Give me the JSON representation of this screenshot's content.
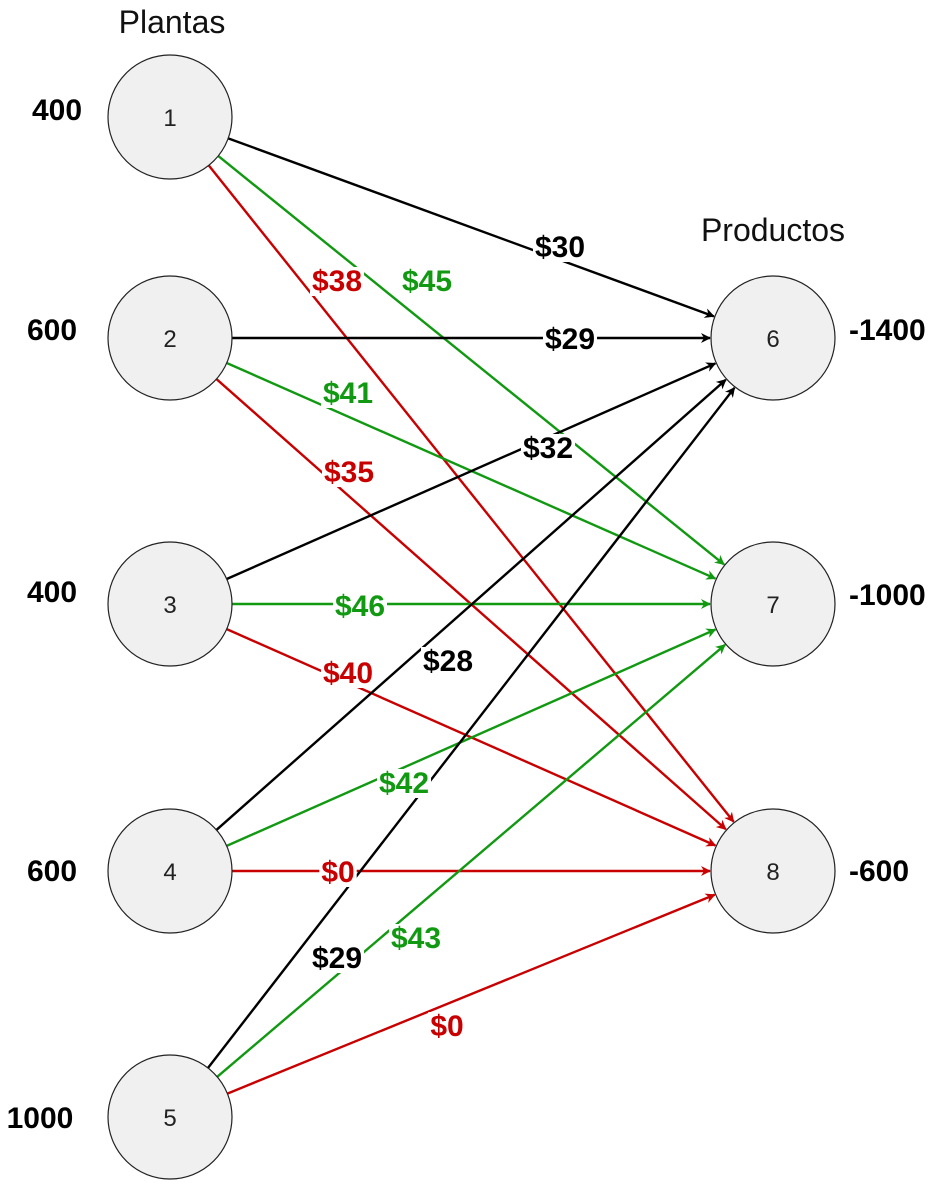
{
  "headings": {
    "sources": "Plantas",
    "sinks": "Productos"
  },
  "colors": {
    "black": "#000000",
    "green": "#119911",
    "red": "#c80000"
  },
  "nodes": [
    {
      "id": "1",
      "label": "1",
      "amount": "400"
    },
    {
      "id": "2",
      "label": "2",
      "amount": "600"
    },
    {
      "id": "3",
      "label": "3",
      "amount": "400"
    },
    {
      "id": "4",
      "label": "4",
      "amount": "600"
    },
    {
      "id": "5",
      "label": "5",
      "amount": "1000"
    },
    {
      "id": "6",
      "label": "6",
      "amount": "-1400"
    },
    {
      "id": "7",
      "label": "7",
      "amount": "-1000"
    },
    {
      "id": "8",
      "label": "8",
      "amount": "-600"
    }
  ],
  "edges": [
    {
      "from": "1",
      "to": "6",
      "cost": "$30",
      "color": "black"
    },
    {
      "from": "1",
      "to": "7",
      "cost": "$45",
      "color": "green"
    },
    {
      "from": "1",
      "to": "8",
      "cost": "$38",
      "color": "red"
    },
    {
      "from": "2",
      "to": "6",
      "cost": "$29",
      "color": "black"
    },
    {
      "from": "2",
      "to": "7",
      "cost": "$41",
      "color": "green"
    },
    {
      "from": "2",
      "to": "8",
      "cost": "$35",
      "color": "red"
    },
    {
      "from": "3",
      "to": "6",
      "cost": "$32",
      "color": "black"
    },
    {
      "from": "3",
      "to": "7",
      "cost": "$46",
      "color": "green"
    },
    {
      "from": "3",
      "to": "8",
      "cost": "$40",
      "color": "red"
    },
    {
      "from": "4",
      "to": "6",
      "cost": "$28",
      "color": "black"
    },
    {
      "from": "4",
      "to": "7",
      "cost": "$42",
      "color": "green"
    },
    {
      "from": "4",
      "to": "8",
      "cost": "$0",
      "color": "red"
    },
    {
      "from": "5",
      "to": "6",
      "cost": "$29",
      "color": "black"
    },
    {
      "from": "5",
      "to": "7",
      "cost": "$43",
      "color": "green"
    },
    {
      "from": "5",
      "to": "8",
      "cost": "$0",
      "color": "red"
    }
  ]
}
